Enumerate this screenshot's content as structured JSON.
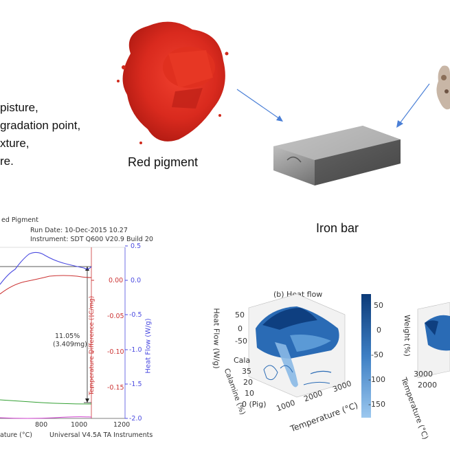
{
  "bullets": [
    "pisture,",
    "gradation point,",
    "xture,",
    "re."
  ],
  "labels": {
    "red_pigment": "Red pigment",
    "iron_bar": "Iron bar"
  },
  "tga": {
    "title": "ed Pigment",
    "run_date": "Run Date: 10-Dec-2015 10.27",
    "instrument": "Instrument: SDT Q600 V20.9 Build 20",
    "annotation_pct": "11.05%",
    "annotation_mg": "(3.409mg)",
    "left_axis_label": "Temperature Difference (°C/mg)",
    "right_axis_label": "Heat Flow (W/g)",
    "left_ticks": [
      "0.00",
      "-0.05",
      "-0.10",
      "-0.15"
    ],
    "right_ticks": [
      "0.5",
      "0.0",
      "-0.5",
      "-1.0",
      "-1.5",
      "-2.0"
    ],
    "x_ticks": [
      "800",
      "1000",
      "1200"
    ],
    "x_label_partial": "ature (°C)",
    "footer": "Universal V4.5A TA Instruments",
    "colors": {
      "left": "#cc3333",
      "right": "#4a4ae0",
      "green": "#33a033"
    }
  },
  "plot3d": {
    "title": "(b) Heat flow",
    "z_label": "Heat Flow (W/g)",
    "z_ticks": [
      "50",
      "0",
      "-50"
    ],
    "y_label": "Calamine (%)",
    "y_ticks": [
      "35",
      "20",
      "10",
      "0 (Pig)"
    ],
    "y_top": "Cala",
    "x_label": "Temperature (°C)",
    "x_ticks": [
      "1000",
      "2000",
      "3000"
    ],
    "colorbar_ticks": [
      "50",
      "0",
      "-50",
      "-100",
      "-150"
    ],
    "colors": {
      "dark": "#0b3a78",
      "light": "#9cc8ef"
    }
  },
  "plot3d_right": {
    "z_label": "Weight (%)",
    "y_label": "Temperature (°C)",
    "y_ticks": [
      "3000",
      "2000"
    ]
  }
}
